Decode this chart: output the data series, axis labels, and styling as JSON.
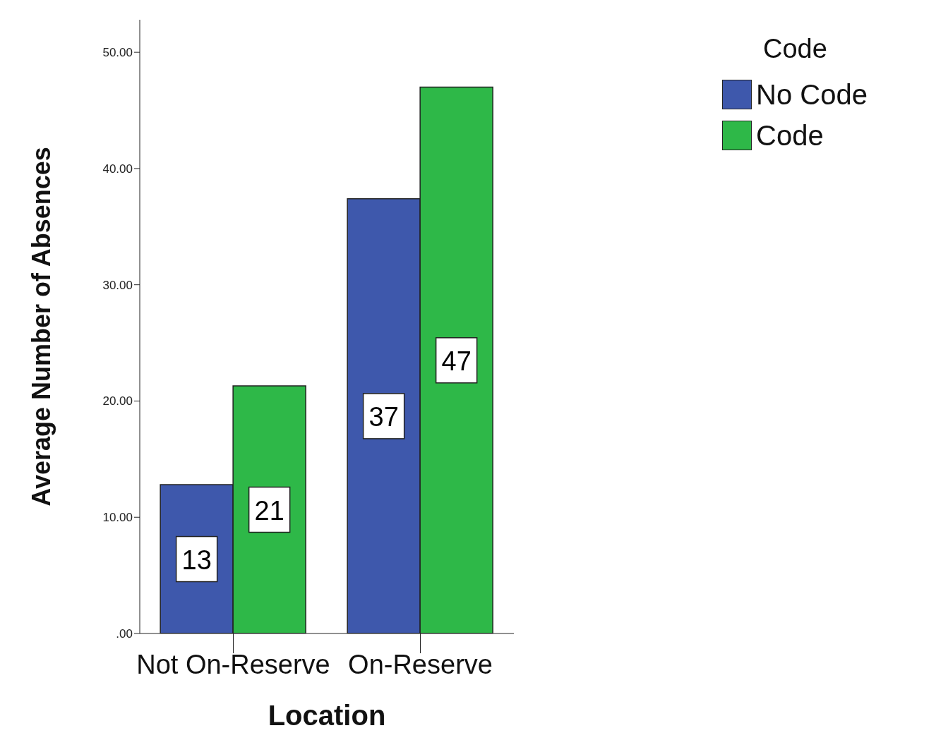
{
  "chart_data": {
    "type": "bar",
    "xlabel": "Location",
    "ylabel": "Average Number of Absences",
    "legend_title": "Code",
    "categories": [
      "Not On-Reserve",
      "On-Reserve"
    ],
    "series": [
      {
        "name": "No Code",
        "color": "#3e58ac",
        "values": [
          12.8,
          37.4
        ],
        "value_labels": [
          "13",
          "37"
        ]
      },
      {
        "name": "Code",
        "color": "#2eb848",
        "values": [
          21.3,
          47.0
        ],
        "value_labels": [
          "21",
          "47"
        ]
      }
    ],
    "ylim": [
      0,
      52.8
    ],
    "yticks": [
      {
        "value": 0,
        "label": ".00"
      },
      {
        "value": 10,
        "label": "10.00"
      },
      {
        "value": 20,
        "label": "20.00"
      },
      {
        "value": 30,
        "label": "30.00"
      },
      {
        "value": 40,
        "label": "40.00"
      },
      {
        "value": 50,
        "label": "50.00"
      }
    ],
    "grid": false,
    "legend": "top right"
  }
}
